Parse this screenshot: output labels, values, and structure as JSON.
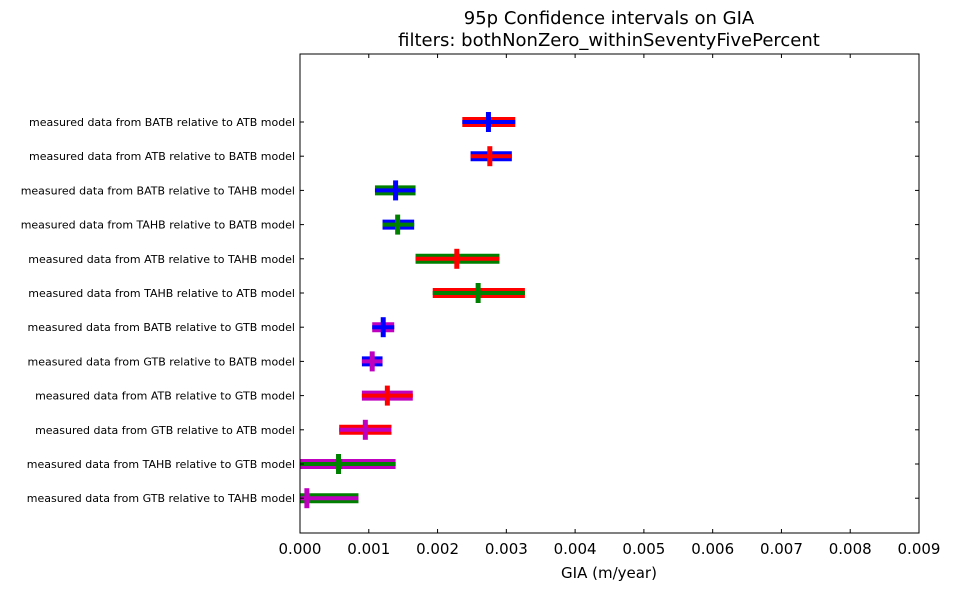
{
  "chart_data": {
    "type": "interval",
    "title": "95p Confidence intervals on GIA",
    "subtitle": "filters: bothNonZero_withinSeventyFivePercent",
    "xlabel": "GIA (m/year)",
    "ylabel": "",
    "xlim": [
      0.0,
      0.009
    ],
    "x_ticks": [
      0.0,
      0.001,
      0.002,
      0.003,
      0.004,
      0.005,
      0.006,
      0.007,
      0.008,
      0.009
    ],
    "x_tick_labels": [
      "0.000",
      "0.001",
      "0.002",
      "0.003",
      "0.004",
      "0.005",
      "0.006",
      "0.007",
      "0.008",
      "0.009"
    ],
    "grid": false,
    "categories": [
      "measured data from BATB relative to ATB model",
      "measured data from ATB relative to BATB model",
      "measured data from BATB relative to TAHB model",
      "measured data from TAHB relative to BATB model",
      "measured data from ATB relative to TAHB model",
      "measured data from TAHB relative to ATB model",
      "measured data from BATB relative to GTB model",
      "measured data from GTB relative to BATB model",
      "measured data from ATB relative to GTB model",
      "measured data from GTB relative to ATB model",
      "measured data from TAHB relative to GTB model",
      "measured data from GTB relative to TAHB model"
    ],
    "intervals": [
      {
        "low": 0.00236,
        "high": 0.00313,
        "center": 0.00274,
        "outer_color": "#ff0000",
        "inner_color": "#0000ff",
        "marker_color": "#0000ff"
      },
      {
        "low": 0.00248,
        "high": 0.00308,
        "center": 0.00276,
        "outer_color": "#0000ff",
        "inner_color": "#ff0000",
        "marker_color": "#ff0000"
      },
      {
        "low": 0.00109,
        "high": 0.00168,
        "center": 0.00139,
        "outer_color": "#008000",
        "inner_color": "#0000ff",
        "marker_color": "#0000ff"
      },
      {
        "low": 0.0012,
        "high": 0.00166,
        "center": 0.00142,
        "outer_color": "#0000ff",
        "inner_color": "#008000",
        "marker_color": "#008000"
      },
      {
        "low": 0.00168,
        "high": 0.0029,
        "center": 0.00228,
        "outer_color": "#008000",
        "inner_color": "#ff0000",
        "marker_color": "#ff0000"
      },
      {
        "low": 0.00193,
        "high": 0.00327,
        "center": 0.00259,
        "outer_color": "#ff0000",
        "inner_color": "#008000",
        "marker_color": "#008000"
      },
      {
        "low": 0.00105,
        "high": 0.00137,
        "center": 0.00121,
        "outer_color": "#bf00bf",
        "inner_color": "#0000ff",
        "marker_color": "#0000ff"
      },
      {
        "low": 0.0009,
        "high": 0.0012,
        "center": 0.00105,
        "outer_color": "#0000ff",
        "inner_color": "#bf00bf",
        "marker_color": "#bf00bf"
      },
      {
        "low": 0.0009,
        "high": 0.00164,
        "center": 0.00127,
        "outer_color": "#bf00bf",
        "inner_color": "#ff0000",
        "marker_color": "#ff0000"
      },
      {
        "low": 0.00057,
        "high": 0.00133,
        "center": 0.00095,
        "outer_color": "#ff0000",
        "inner_color": "#bf00bf",
        "marker_color": "#bf00bf"
      },
      {
        "low": 0.0,
        "high": 0.00139,
        "center": 0.00056,
        "outer_color": "#bf00bf",
        "inner_color": "#008000",
        "marker_color": "#008000"
      },
      {
        "low": 0.0,
        "high": 0.00085,
        "center": 0.0001,
        "outer_color": "#008000",
        "inner_color": "#bf00bf",
        "marker_color": "#bf00bf"
      }
    ]
  }
}
